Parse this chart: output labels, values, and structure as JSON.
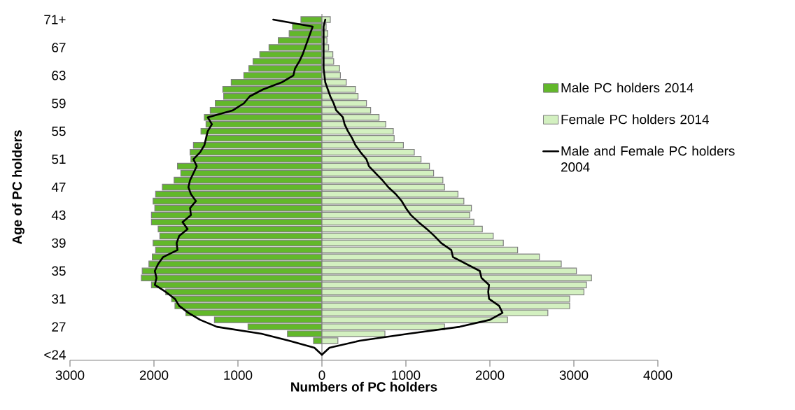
{
  "chart_data": {
    "type": "bar",
    "orientation": "horizontal",
    "stacked": true,
    "xlabel": "Numbers of PC holders",
    "ylabel": "Age of PC holders",
    "categories": [
      "71+",
      null,
      null,
      null,
      "67",
      null,
      null,
      null,
      "63",
      null,
      null,
      null,
      "59",
      null,
      null,
      null,
      "55",
      null,
      null,
      null,
      "51",
      null,
      null,
      null,
      "47",
      null,
      null,
      null,
      "43",
      null,
      null,
      null,
      "39",
      null,
      null,
      null,
      "35",
      null,
      null,
      null,
      "31",
      null,
      null,
      null,
      "27",
      null,
      null,
      null,
      "<24"
    ],
    "xlim": [
      -3000,
      4000
    ],
    "xticks": [
      {
        "value": -3000,
        "label": "3000"
      },
      {
        "value": -2000,
        "label": "2000"
      },
      {
        "value": -1000,
        "label": "1000"
      },
      0,
      1000,
      2000,
      3000,
      4000
    ],
    "legend": "right",
    "marker": "none",
    "line_style": "solid",
    "series": [
      {
        "name": "Male PC holders 2014",
        "color": "#62b82a",
        "values": [
          -250,
          -350,
          -390,
          -520,
          -630,
          -740,
          -820,
          -870,
          -930,
          -1080,
          -1180,
          -1170,
          -1270,
          -1330,
          -1400,
          -1380,
          -1440,
          -1380,
          -1530,
          -1570,
          -1560,
          -1720,
          -1680,
          -1760,
          -1900,
          -1980,
          -2010,
          -1990,
          -2030,
          -2030,
          -1950,
          -1930,
          -2010,
          -1980,
          -2020,
          -2060,
          -2140,
          -2150,
          -2030,
          -1860,
          -1790,
          -1750,
          -1620,
          -1280,
          -880,
          -410,
          -100,
          null,
          null
        ]
      },
      {
        "name": "Female PC holders 2014",
        "color": "#d3f0c0",
        "values": [
          100,
          50,
          70,
          60,
          80,
          130,
          140,
          210,
          220,
          290,
          400,
          430,
          530,
          580,
          680,
          760,
          850,
          860,
          970,
          1100,
          1180,
          1280,
          1330,
          1440,
          1460,
          1620,
          1690,
          1780,
          1760,
          1810,
          1910,
          2040,
          2160,
          2330,
          2590,
          2850,
          3030,
          3210,
          3150,
          3120,
          2950,
          2950,
          2690,
          2210,
          1460,
          750,
          190,
          null,
          null
        ]
      },
      {
        "name": "Male and Female PC holders 2004",
        "type": "line",
        "color": "#000000",
        "values": [
          -580,
          -110,
          -140,
          -170,
          -200,
          -230,
          -270,
          -320,
          -340,
          -480,
          -700,
          -860,
          -930,
          -1060,
          -1360,
          -1310,
          -1360,
          -1380,
          -1400,
          -1450,
          -1530,
          -1490,
          -1530,
          -1570,
          -1590,
          -1560,
          -1500,
          -1570,
          -1560,
          -1660,
          -1600,
          -1700,
          -1730,
          -1720,
          -1890,
          -1950,
          -1990,
          -1970,
          -1990,
          -1860,
          -1750,
          -1700,
          -1590,
          -1450,
          -1250,
          -720,
          -390,
          -90,
          0
        ]
      },
      {
        "type": "line",
        "color": "#000000",
        "values": [
          40,
          20,
          20,
          20,
          20,
          20,
          20,
          20,
          30,
          40,
          70,
          100,
          140,
          170,
          250,
          270,
          310,
          360,
          400,
          460,
          530,
          560,
          640,
          720,
          790,
          880,
          950,
          1000,
          1060,
          1150,
          1250,
          1340,
          1420,
          1540,
          1560,
          1720,
          1880,
          1900,
          1990,
          1980,
          1990,
          2110,
          2150,
          2000,
          1640,
          1030,
          450,
          90,
          0
        ]
      }
    ]
  }
}
